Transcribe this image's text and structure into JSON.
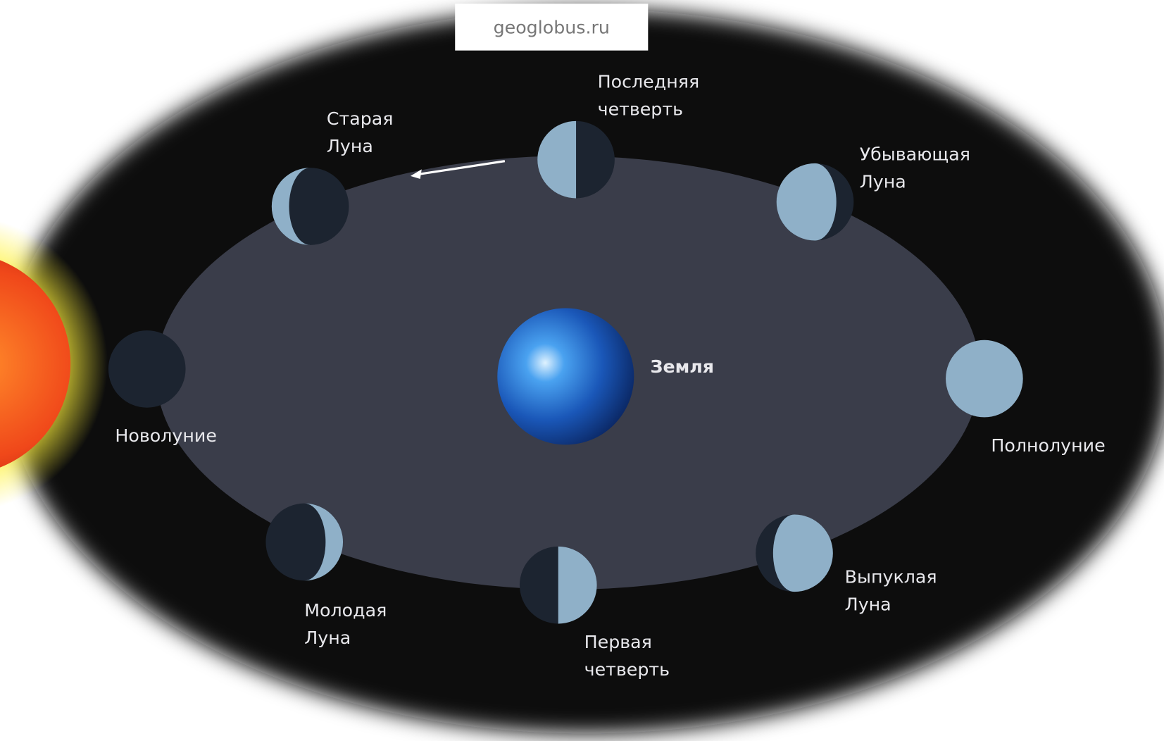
{
  "watermark": "geoglobus.ru",
  "earth": {
    "label": "Земля"
  },
  "phases": [
    {
      "lines": [
        "Новолуние"
      ]
    },
    {
      "lines": [
        "Молодая",
        "Луна"
      ]
    },
    {
      "lines": [
        "Первая",
        "четверть"
      ]
    },
    {
      "lines": [
        "Выпуклая",
        "Луна"
      ]
    },
    {
      "lines": [
        "Полнолуние"
      ]
    },
    {
      "lines": [
        "Убывающая",
        "Луна"
      ]
    },
    {
      "lines": [
        "Последняя",
        "четверть"
      ]
    },
    {
      "lines": [
        "Старая",
        "Луна"
      ]
    }
  ]
}
